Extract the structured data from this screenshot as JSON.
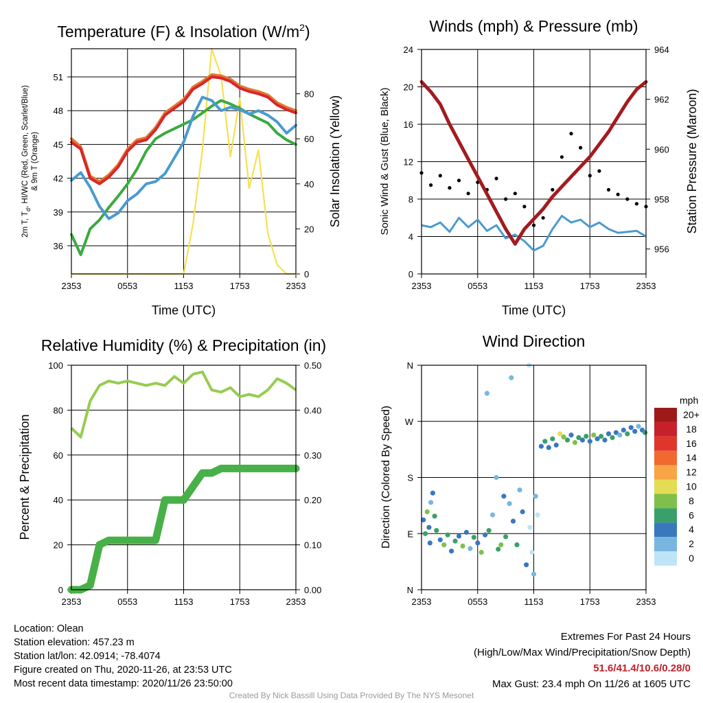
{
  "chart_data": [
    {
      "id": "temp",
      "type": "line",
      "title": "Temperature (F) & Insolation (W/m",
      "title_sup": "2",
      "title_tail": ")",
      "xlabel": "Time (UTC)",
      "ylabel_line1": "2m T, T",
      "ylabel_sub": "d",
      "ylabel_rest": ", HI/WC (Red, Green, Scarlet/Blue)",
      "ylabel_line2": "& 9m T (Orange)",
      "y2label": "Solar Insolation (Yellow)",
      "x_ticks": [
        "2353",
        "0553",
        "1153",
        "1753",
        "2353"
      ],
      "ylim": [
        33.5,
        53.5
      ],
      "y_ticks": [
        "36",
        "39",
        "42",
        "45",
        "48",
        "51"
      ],
      "y2lim": [
        0,
        100
      ],
      "y2_ticks": [
        "0",
        "20",
        "40",
        "60",
        "80"
      ],
      "grid": true,
      "x": [
        0,
        1,
        2,
        3,
        4,
        5,
        6,
        7,
        8,
        9,
        10,
        11,
        12,
        13,
        14,
        15,
        16,
        17,
        18,
        19,
        20,
        21,
        22,
        23,
        24
      ],
      "series": [
        {
          "color": "#e07a30",
          "axis": "left",
          "values": [
            45.5,
            44.8,
            42.2,
            41.7,
            42.3,
            43.2,
            44.6,
            45.4,
            45.6,
            46.5,
            47.8,
            48.4,
            49.0,
            50.1,
            50.6,
            51.2,
            51.1,
            50.8,
            50.2,
            49.9,
            49.7,
            49.4,
            48.7,
            48.3,
            48.0
          ]
        },
        {
          "color": "#d8262a",
          "axis": "left",
          "values": [
            45.2,
            44.6,
            42.0,
            41.5,
            42.1,
            43.0,
            44.4,
            45.2,
            45.4,
            46.3,
            47.6,
            48.2,
            48.8,
            49.9,
            50.4,
            51.0,
            50.9,
            50.6,
            50.0,
            49.7,
            49.5,
            49.2,
            48.5,
            48.1,
            47.8
          ]
        },
        {
          "color": "#4a9ad0",
          "axis": "left",
          "values": [
            41.8,
            42.5,
            41.2,
            39.5,
            38.4,
            38.9,
            40.0,
            40.6,
            41.5,
            41.7,
            42.4,
            43.8,
            45.2,
            47.5,
            49.2,
            48.9,
            48.0,
            48.3,
            48.1,
            47.7,
            48.0,
            47.6,
            47.0,
            46.0,
            46.7
          ]
        },
        {
          "color": "#3aaa40",
          "axis": "left",
          "values": [
            37.0,
            35.2,
            37.5,
            38.3,
            39.4,
            40.4,
            41.5,
            42.8,
            44.4,
            45.5,
            46.0,
            46.4,
            46.8,
            47.2,
            47.8,
            48.4,
            48.9,
            48.6,
            48.2,
            47.7,
            47.3,
            46.9,
            46.0,
            45.4,
            45.0
          ]
        },
        {
          "color": "#f7e050",
          "axis": "right",
          "values": [
            0,
            0,
            0,
            0,
            0,
            0,
            0,
            0,
            0,
            0,
            0,
            0,
            0,
            22,
            55,
            100,
            88,
            52,
            78,
            38,
            55,
            18,
            4,
            0,
            0
          ]
        }
      ]
    },
    {
      "id": "wind",
      "type": "scatter",
      "title": "Winds (mph) & Pressure (mb)",
      "xlabel": "Time (UTC)",
      "ylabel": "Sonic Wind & Gust (Blue, Black)",
      "y2label": "Station Pressure (Maroon)",
      "x_ticks": [
        "2353",
        "0553",
        "1153",
        "1753",
        "2353"
      ],
      "ylim": [
        0,
        24
      ],
      "y_ticks": [
        "0",
        "4",
        "8",
        "12",
        "16",
        "20",
        "24"
      ],
      "y2lim": [
        955.0,
        964.0
      ],
      "y2_ticks": [
        "956",
        "958",
        "960",
        "962",
        "964"
      ],
      "grid": true,
      "x": [
        0,
        1,
        2,
        3,
        4,
        5,
        6,
        7,
        8,
        9,
        10,
        11,
        12,
        13,
        14,
        15,
        16,
        17,
        18,
        19,
        20,
        21,
        22,
        23,
        24
      ],
      "series": [
        {
          "color": "#4a9ad0",
          "kind": "line",
          "axis": "left",
          "values": [
            5.2,
            5.0,
            5.5,
            4.5,
            6.0,
            5.0,
            5.8,
            4.6,
            5.2,
            3.8,
            4.2,
            3.5,
            2.5,
            3.0,
            4.8,
            6.2,
            5.5,
            5.8,
            5.0,
            5.5,
            4.8,
            4.4,
            4.5,
            4.6,
            4.0
          ]
        },
        {
          "color": "#000000",
          "kind": "points",
          "axis": "left",
          "values": [
            10.8,
            9.5,
            10.5,
            9.2,
            10.0,
            8.6,
            9.8,
            9.0,
            10.2,
            8.0,
            8.6,
            7.2,
            5.2,
            6.0,
            9.0,
            12.5,
            15.0,
            13.5,
            10.5,
            11.0,
            9.0,
            8.5,
            8.0,
            7.5,
            7.2
          ]
        },
        {
          "color": "#a31b1f",
          "kind": "line",
          "axis": "right",
          "values": [
            962.7,
            962.3,
            961.8,
            961.0,
            960.3,
            959.6,
            958.9,
            958.2,
            957.5,
            956.8,
            956.2,
            956.8,
            957.2,
            957.6,
            958.1,
            958.5,
            958.9,
            959.3,
            959.7,
            960.2,
            960.7,
            961.3,
            961.9,
            962.4,
            962.7
          ]
        }
      ]
    },
    {
      "id": "rh",
      "type": "line",
      "title": "Relative Humidity (%) & Precipitation (in)",
      "ylabel": "Percent & Precipitation",
      "x_ticks": [
        "2353",
        "0553",
        "1153",
        "1753",
        "2353"
      ],
      "ylim": [
        0,
        100
      ],
      "y_ticks": [
        "0",
        "20",
        "40",
        "60",
        "80",
        "100"
      ],
      "y2lim": [
        0,
        0.5
      ],
      "y2_ticks": [
        "0.00",
        "0.10",
        "0.20",
        "0.30",
        "0.40",
        "0.50"
      ],
      "grid": true,
      "x": [
        0,
        1,
        2,
        3,
        4,
        5,
        6,
        7,
        8,
        9,
        10,
        11,
        12,
        13,
        14,
        15,
        16,
        17,
        18,
        19,
        20,
        21,
        22,
        23,
        24
      ],
      "series": [
        {
          "color": "#96cc50",
          "kind": "line",
          "axis": "left",
          "values": [
            72,
            68,
            84,
            91,
            93,
            92,
            93,
            92,
            91,
            92,
            91,
            95,
            92,
            96,
            97,
            89,
            88,
            90,
            86,
            87,
            86,
            89,
            94,
            92,
            89
          ]
        },
        {
          "color": "#48b048",
          "kind": "thick",
          "axis": "right",
          "values": [
            0,
            0,
            0.01,
            0.1,
            0.11,
            0.11,
            0.11,
            0.11,
            0.11,
            0.11,
            0.2,
            0.2,
            0.2,
            0.23,
            0.26,
            0.26,
            0.27,
            0.27,
            0.27,
            0.27,
            0.27,
            0.27,
            0.27,
            0.27,
            0.27
          ]
        }
      ]
    },
    {
      "id": "dir",
      "type": "scatter",
      "title": "Wind Direction",
      "ylabel": "Direction (Colored By Speed)",
      "x_ticks": [
        "2353",
        "0553",
        "1153",
        "1753",
        "2353"
      ],
      "y_ticks": [
        "N",
        "E",
        "S",
        "W",
        "N"
      ],
      "ylim": [
        0,
        360
      ],
      "grid": true,
      "legend_title": "mph",
      "legend_labels": [
        "20+",
        "18",
        "16",
        "14",
        "12",
        "10",
        "8",
        "6",
        "4",
        "2",
        "0"
      ],
      "legend_colors": [
        "#9e1a1a",
        "#c8202a",
        "#e0352b",
        "#f06a30",
        "#f7a545",
        "#e5dc55",
        "#7ec04a",
        "#3aa06a",
        "#3a78be",
        "#78b6e0",
        "#bfe3f7"
      ],
      "points": [
        [
          0.2,
          112,
          "#3a78be"
        ],
        [
          0.4,
          90,
          "#3aa06a"
        ],
        [
          0.6,
          125,
          "#7ec04a"
        ],
        [
          0.8,
          100,
          "#3a78be"
        ],
        [
          1.0,
          140,
          "#78b6e0"
        ],
        [
          1.2,
          155,
          "#3a78be"
        ],
        [
          1.4,
          118,
          "#3aa06a"
        ],
        [
          0.9,
          75,
          "#3a78be"
        ],
        [
          1.6,
          95,
          "#3aa06a"
        ],
        [
          2.0,
          80,
          "#3a78be"
        ],
        [
          2.4,
          72,
          "#7ec04a"
        ],
        [
          2.8,
          88,
          "#3aa06a"
        ],
        [
          3.2,
          62,
          "#3a78be"
        ],
        [
          3.6,
          78,
          "#3aa06a"
        ],
        [
          4.0,
          86,
          "#3a78be"
        ],
        [
          4.4,
          70,
          "#7ec04a"
        ],
        [
          4.8,
          92,
          "#3a78be"
        ],
        [
          5.2,
          66,
          "#78b6e0"
        ],
        [
          5.6,
          84,
          "#3aa06a"
        ],
        [
          6.0,
          75,
          "#3a78be"
        ],
        [
          6.4,
          60,
          "#7ec04a"
        ],
        [
          6.8,
          88,
          "#3a78be"
        ],
        [
          7.2,
          95,
          "#3aa06a"
        ],
        [
          7.6,
          120,
          "#78b6e0"
        ],
        [
          8.0,
          180,
          "#78b6e0"
        ],
        [
          7.0,
          315,
          "#78b6e0"
        ],
        [
          8.2,
          65,
          "#3aa06a"
        ],
        [
          8.5,
          72,
          "#7ec04a"
        ],
        [
          8.8,
          150,
          "#3a78be"
        ],
        [
          9.0,
          85,
          "#3aa06a"
        ],
        [
          9.4,
          138,
          "#78b6e0"
        ],
        [
          9.6,
          340,
          "#78b6e0"
        ],
        [
          9.8,
          110,
          "#3a78be"
        ],
        [
          10.2,
          72,
          "#3aa06a"
        ],
        [
          10.5,
          160,
          "#78b6e0"
        ],
        [
          10.8,
          125,
          "#3a78be"
        ],
        [
          11.2,
          40,
          "#3a78be"
        ],
        [
          11.5,
          360,
          "#bfe3f7"
        ],
        [
          11.6,
          100,
          "#bfe3f7"
        ],
        [
          11.8,
          60,
          "#bfe3f7"
        ],
        [
          12.0,
          25,
          "#78b6e0"
        ],
        [
          12.2,
          150,
          "#78b6e0"
        ],
        [
          12.4,
          120,
          "#bfe3f7"
        ],
        [
          12.8,
          230,
          "#3a78be"
        ],
        [
          13.2,
          238,
          "#3aa06a"
        ],
        [
          13.6,
          228,
          "#3a78be"
        ],
        [
          14.0,
          242,
          "#3aa06a"
        ],
        [
          14.4,
          232,
          "#3a78be"
        ],
        [
          14.8,
          250,
          "#e5dc55"
        ],
        [
          15.2,
          245,
          "#7ec04a"
        ],
        [
          15.6,
          240,
          "#3aa06a"
        ],
        [
          16.0,
          248,
          "#3a78be"
        ],
        [
          16.4,
          236,
          "#7ec04a"
        ],
        [
          16.8,
          244,
          "#3aa06a"
        ],
        [
          17.2,
          240,
          "#3a78be"
        ],
        [
          17.6,
          246,
          "#3aa06a"
        ],
        [
          18.0,
          238,
          "#3a78be"
        ],
        [
          18.4,
          248,
          "#7ec04a"
        ],
        [
          18.8,
          242,
          "#3a78be"
        ],
        [
          19.2,
          246,
          "#3aa06a"
        ],
        [
          19.6,
          240,
          "#3a78be"
        ],
        [
          20.0,
          250,
          "#3a78be"
        ],
        [
          20.4,
          244,
          "#3aa06a"
        ],
        [
          20.8,
          252,
          "#3a78be"
        ],
        [
          21.2,
          248,
          "#78b6e0"
        ],
        [
          21.6,
          256,
          "#3a78be"
        ],
        [
          22.0,
          250,
          "#3aa06a"
        ],
        [
          22.4,
          260,
          "#3a78be"
        ],
        [
          22.8,
          254,
          "#3a78be"
        ],
        [
          23.2,
          262,
          "#78b6e0"
        ],
        [
          23.6,
          256,
          "#3a78be"
        ],
        [
          23.9,
          252,
          "#3aa06a"
        ]
      ]
    }
  ],
  "info": {
    "location": "Location: Olean",
    "elevation": "Station elevation: 457.23 m",
    "latlon": "Station lat/lon: 42.0914; -78.4074",
    "created": "Figure created on Thu, 2020-11-26, at 23:53 UTC",
    "recent": "Most recent data timestamp: 2020/11/26 23:50:00"
  },
  "extremes": {
    "title": "Extremes For Past 24 Hours",
    "subtitle": "(High/Low/Max Wind/Precipitation/Snow Depth)",
    "values": "51.6/41.4/10.6/0.28/0",
    "gust": "Max Gust: 23.4 mph On 11/26 at 1605 UTC"
  },
  "credit": "Created By Nick Bassill Using Data Provided By The NYS Mesonet"
}
